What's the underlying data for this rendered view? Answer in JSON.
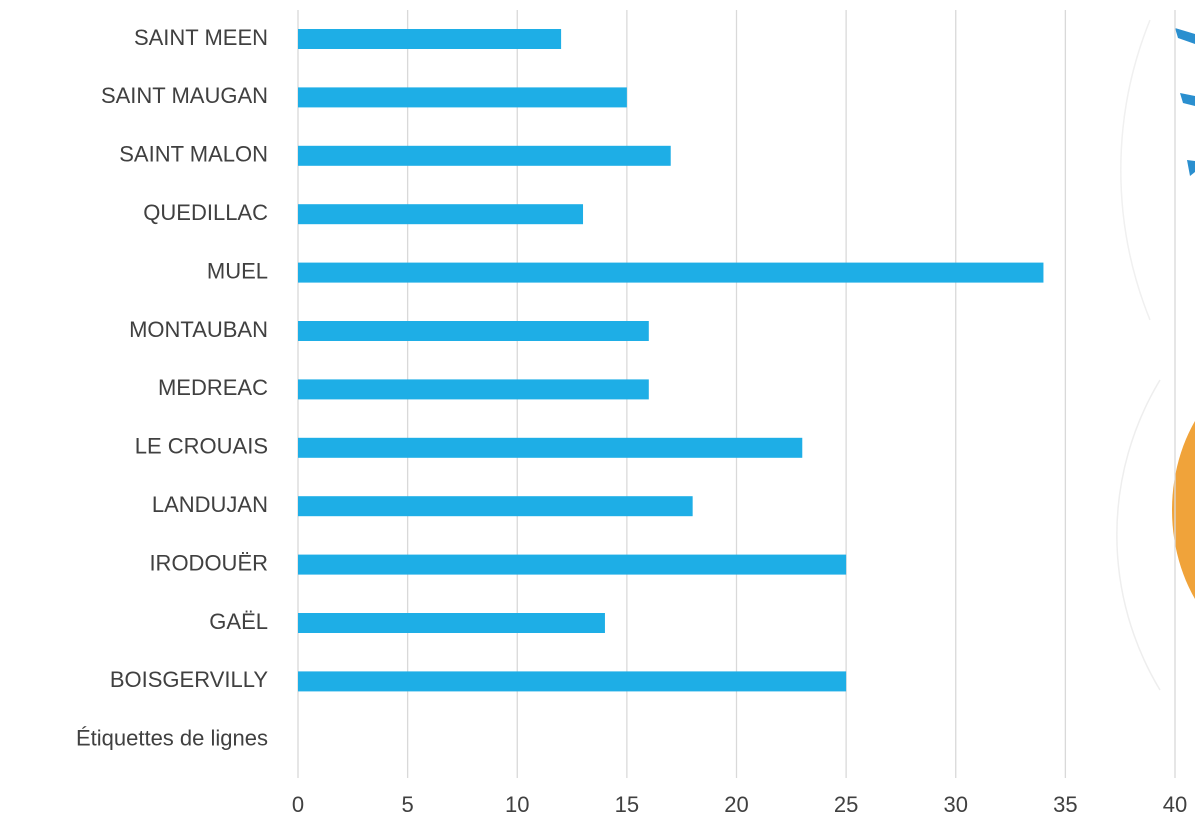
{
  "chart_data": {
    "type": "bar",
    "orientation": "horizontal",
    "categories": [
      "SAINT MEEN",
      "SAINT MAUGAN",
      "SAINT MALON",
      "QUEDILLAC",
      "MUEL",
      "MONTAUBAN",
      "MEDREAC",
      "LE CROUAIS",
      "LANDUJAN",
      "IRODOUËR",
      "GAËL",
      "BOISGERVILLY",
      "Étiquettes de lignes"
    ],
    "values": [
      12,
      15,
      17,
      13,
      34,
      16,
      16,
      23,
      18,
      25,
      14,
      25,
      null
    ],
    "color": "#1eaee6",
    "xlim": [
      0,
      40
    ],
    "xticks": [
      0,
      5,
      10,
      15,
      20,
      25,
      30,
      35,
      40
    ],
    "grid": true
  }
}
